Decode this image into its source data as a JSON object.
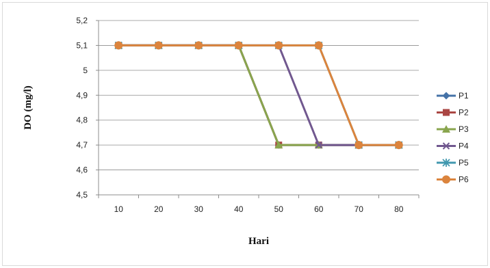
{
  "chart_data": {
    "type": "line",
    "title": "",
    "xlabel": "Hari",
    "ylabel": "DO (mg/l)",
    "x": [
      10,
      20,
      30,
      40,
      50,
      60,
      70,
      80
    ],
    "x_tick_labels": [
      "10",
      "20",
      "30",
      "40",
      "50",
      "60",
      "70",
      "80"
    ],
    "ylim": [
      4.5,
      5.2
    ],
    "y_ticks": [
      4.5,
      4.6,
      4.7,
      4.8,
      4.9,
      5.0,
      5.1,
      5.2
    ],
    "y_tick_labels": [
      "4,5",
      "4,6",
      "4,7",
      "4,8",
      "4,9",
      "5",
      "5,1",
      "5,2"
    ],
    "grid": "horizontal",
    "legend_position": "right",
    "series": [
      {
        "name": "P1",
        "color": "#4572A7",
        "marker": "diamond",
        "values": [
          5.1,
          5.1,
          5.1,
          5.1,
          4.7,
          4.7,
          4.7,
          4.7
        ]
      },
      {
        "name": "P2",
        "color": "#AA4643",
        "marker": "square",
        "values": [
          5.1,
          5.1,
          5.1,
          5.1,
          4.7,
          4.7,
          4.7,
          4.7
        ]
      },
      {
        "name": "P3",
        "color": "#89A54E",
        "marker": "triangle",
        "values": [
          5.1,
          5.1,
          5.1,
          5.1,
          4.7,
          4.7,
          4.7,
          4.7
        ]
      },
      {
        "name": "P4",
        "color": "#71588F",
        "marker": "x",
        "values": [
          5.1,
          5.1,
          5.1,
          5.1,
          5.1,
          4.7,
          4.7,
          4.7
        ]
      },
      {
        "name": "P5",
        "color": "#4198AF",
        "marker": "star",
        "values": [
          5.1,
          5.1,
          5.1,
          5.1,
          5.1,
          5.1,
          4.7,
          4.7
        ]
      },
      {
        "name": "P6",
        "color": "#DB843D",
        "marker": "circle",
        "values": [
          5.1,
          5.1,
          5.1,
          5.1,
          5.1,
          5.1,
          4.7,
          4.7
        ]
      }
    ]
  }
}
